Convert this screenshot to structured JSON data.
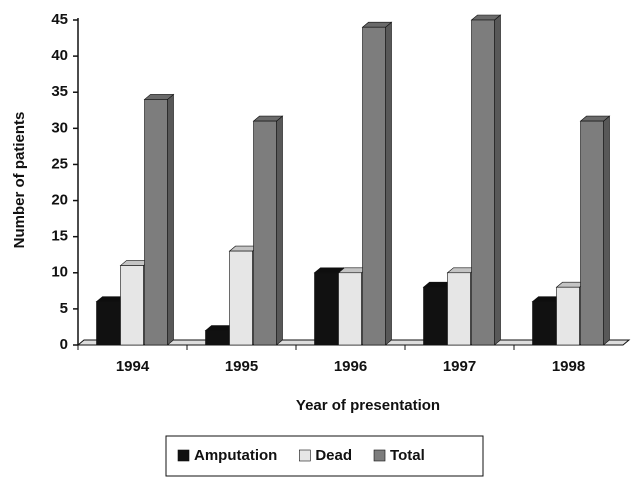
{
  "chart_data": {
    "type": "bar",
    "x_label": "Year of presentation",
    "y_label": "Number of patients",
    "categories": [
      "1994",
      "1995",
      "1996",
      "1997",
      "1998"
    ],
    "series": [
      {
        "name": "Amputation",
        "color": "#111111",
        "values": [
          6,
          2,
          10,
          8,
          6
        ]
      },
      {
        "name": "Dead",
        "color": "#e6e6e6",
        "values": [
          11,
          13,
          10,
          10,
          8
        ]
      },
      {
        "name": "Total",
        "color": "#7d7d7d",
        "values": [
          34,
          31,
          44,
          45,
          31
        ]
      }
    ],
    "ylim": [
      0,
      45
    ],
    "yticks": [
      0,
      5,
      10,
      15,
      20,
      25,
      30,
      35,
      40,
      45
    ]
  }
}
